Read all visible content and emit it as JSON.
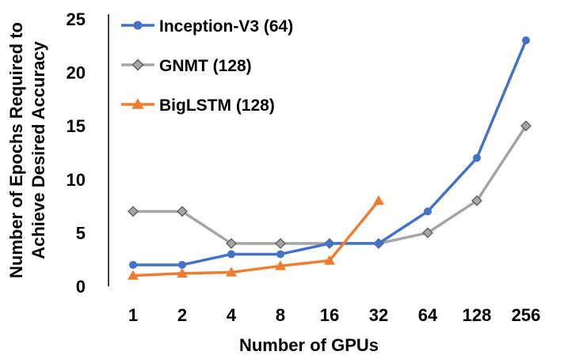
{
  "chart_data": {
    "type": "line",
    "title": "",
    "xlabel": "Number of GPUs",
    "ylabel": "Number of Epochs Required to Achieve Desired Accuracy",
    "ylabel_lines": [
      "Number of Epochs Required to",
      "Achieve Desired Accuracy"
    ],
    "categories": [
      "1",
      "2",
      "4",
      "8",
      "16",
      "32",
      "64",
      "128",
      "256"
    ],
    "ylim": [
      0,
      25
    ],
    "yticks": [
      "0",
      "5",
      "10",
      "15",
      "20",
      "25"
    ],
    "grid": false,
    "legend_position": "top-left",
    "series": [
      {
        "name": "Inception-V3 (64)",
        "color": "#4472C4",
        "marker": "circle",
        "values": [
          2,
          2,
          3,
          3,
          4,
          4,
          7,
          12,
          23
        ]
      },
      {
        "name": "GNMT (128)",
        "color": "#A5A5A5",
        "marker": "diamond",
        "values": [
          7,
          7,
          4,
          4,
          4,
          4,
          5,
          8,
          15
        ]
      },
      {
        "name": "BigLSTM (128)",
        "color": "#ED7D31",
        "marker": "triangle",
        "values": [
          1,
          1.2,
          1.3,
          1.9,
          2.4,
          8,
          null,
          null,
          null
        ]
      }
    ]
  }
}
